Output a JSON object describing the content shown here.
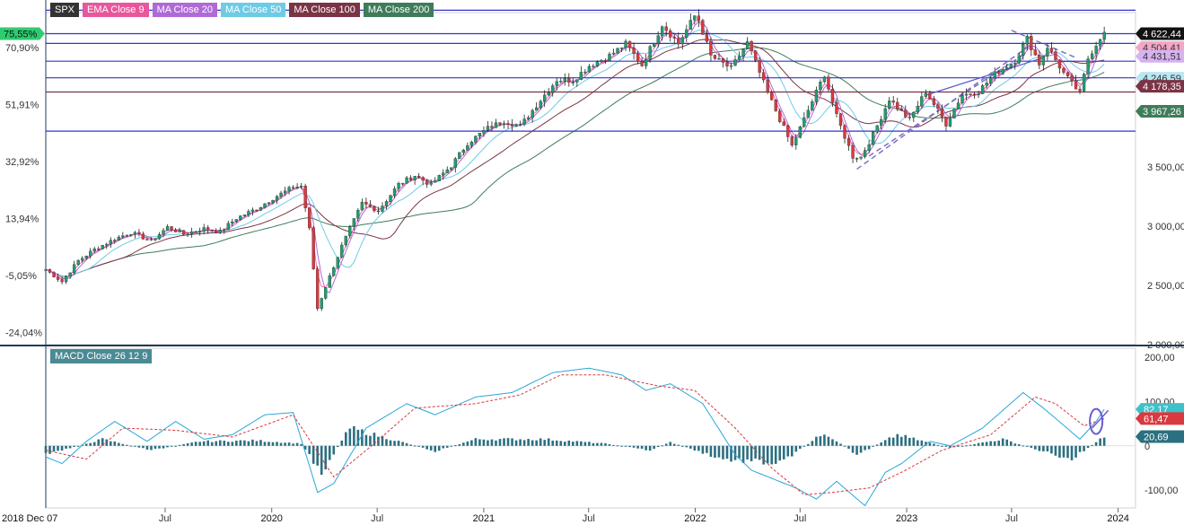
{
  "legend": [
    {
      "label": "SPX",
      "color": "#333333"
    },
    {
      "label": "EMA Close 9",
      "color": "#e8579b"
    },
    {
      "label": "MA Close 20",
      "color": "#b06ad8"
    },
    {
      "label": "MA Close 50",
      "color": "#6ecbe6"
    },
    {
      "label": "MA Close 100",
      "color": "#7a3445"
    },
    {
      "label": "MA Close 200",
      "color": "#3f7c5a"
    }
  ],
  "macd_label": "MACD Close 26 12 9",
  "chart_data": [
    {
      "type": "candlestick",
      "title": "SPX",
      "x_range": [
        "2018-12-07",
        "2024-01-31"
      ],
      "ylim": [
        2000,
        4800
      ],
      "right_ticks": [
        "2 000,00",
        "2 500,00",
        "3 000,00",
        "3 500,00"
      ],
      "right_tick_values": [
        2000,
        2500,
        3000,
        3500
      ],
      "left_ticks": [
        "75,55%",
        "70,90%",
        "51,91%",
        "32,92%",
        "13,94%",
        "-5,05%",
        "-24,04%"
      ],
      "left_tick_values": [
        4622.44,
        4504.4,
        4025,
        3545,
        3064,
        2584,
        2104
      ],
      "price_labels": [
        {
          "text": "4 622,44",
          "value": 4622.44,
          "bg": "#111111",
          "fg": "#ffffff"
        },
        {
          "text": "4 504,41",
          "value": 4504.41,
          "bg": "#f2a7c8",
          "fg": "#333333"
        },
        {
          "text": "4 431,51",
          "value": 4431.51,
          "bg": "#d6b3f0",
          "fg": "#333333"
        },
        {
          "text": "4 246,59",
          "value": 4246.59,
          "bg": "#b9e6f3",
          "fg": "#333333"
        },
        {
          "text": "4 178,35",
          "value": 4178.35,
          "bg": "#7a3445",
          "fg": "#ffffff"
        },
        {
          "text": "3 967,26",
          "value": 3967.26,
          "bg": "#3f7c5a",
          "fg": "#ffffff"
        }
      ],
      "x_ticks": [
        "2018 Dec 07",
        "Jul",
        "2020",
        "Jul",
        "2021",
        "Jul",
        "2022",
        "Jul",
        "2023",
        "Jul",
        "2024"
      ],
      "x_tick_dates": [
        "2018-12-07",
        "2019-07-01",
        "2020-01-01",
        "2020-07-01",
        "2021-01-01",
        "2021-07-01",
        "2022-01-01",
        "2022-07-01",
        "2023-01-01",
        "2023-07-01",
        "2024-01-01"
      ],
      "horizontal_levels": [
        {
          "value": 4820,
          "color": "#3333cc"
        },
        {
          "value": 4622,
          "color": "#3333cc"
        },
        {
          "value": 4540,
          "color": "#3333cc"
        },
        {
          "value": 4390,
          "color": "#3333cc"
        },
        {
          "value": 4250,
          "color": "#3333cc"
        },
        {
          "value": 4130,
          "color": "#7a3445"
        },
        {
          "value": 3800,
          "color": "#3333cc"
        }
      ],
      "closes": [
        {
          "t": "2018-12-07",
          "v": 2633
        },
        {
          "t": "2019-01-04",
          "v": 2531
        },
        {
          "t": "2019-02-01",
          "v": 2707
        },
        {
          "t": "2019-03-01",
          "v": 2803
        },
        {
          "t": "2019-04-05",
          "v": 2892
        },
        {
          "t": "2019-05-03",
          "v": 2946
        },
        {
          "t": "2019-06-07",
          "v": 2873
        },
        {
          "t": "2019-07-05",
          "v": 2990
        },
        {
          "t": "2019-08-02",
          "v": 2932
        },
        {
          "t": "2019-09-06",
          "v": 2978
        },
        {
          "t": "2019-10-04",
          "v": 2952
        },
        {
          "t": "2019-11-01",
          "v": 3066
        },
        {
          "t": "2019-12-06",
          "v": 3146
        },
        {
          "t": "2020-01-03",
          "v": 3235
        },
        {
          "t": "2020-02-07",
          "v": 3327
        },
        {
          "t": "2020-02-21",
          "v": 3338
        },
        {
          "t": "2020-03-06",
          "v": 2972
        },
        {
          "t": "2020-03-20",
          "v": 2305
        },
        {
          "t": "2020-04-03",
          "v": 2489
        },
        {
          "t": "2020-05-01",
          "v": 2831
        },
        {
          "t": "2020-06-05",
          "v": 3193
        },
        {
          "t": "2020-07-03",
          "v": 3130
        },
        {
          "t": "2020-08-07",
          "v": 3351
        },
        {
          "t": "2020-09-04",
          "v": 3427
        },
        {
          "t": "2020-10-02",
          "v": 3348
        },
        {
          "t": "2020-11-06",
          "v": 3509
        },
        {
          "t": "2020-12-04",
          "v": 3699
        },
        {
          "t": "2021-01-08",
          "v": 3825
        },
        {
          "t": "2021-02-05",
          "v": 3887
        },
        {
          "t": "2021-03-05",
          "v": 3842
        },
        {
          "t": "2021-04-02",
          "v": 4020
        },
        {
          "t": "2021-05-07",
          "v": 4233
        },
        {
          "t": "2021-06-04",
          "v": 4230
        },
        {
          "t": "2021-07-02",
          "v": 4352
        },
        {
          "t": "2021-08-06",
          "v": 4437
        },
        {
          "t": "2021-09-03",
          "v": 4535
        },
        {
          "t": "2021-10-01",
          "v": 4357
        },
        {
          "t": "2021-11-05",
          "v": 4698
        },
        {
          "t": "2021-12-03",
          "v": 4538
        },
        {
          "t": "2022-01-03",
          "v": 4796
        },
        {
          "t": "2022-01-28",
          "v": 4432
        },
        {
          "t": "2022-03-04",
          "v": 4329
        },
        {
          "t": "2022-04-01",
          "v": 4545
        },
        {
          "t": "2022-05-06",
          "v": 4123
        },
        {
          "t": "2022-06-17",
          "v": 3675
        },
        {
          "t": "2022-07-01",
          "v": 3825
        },
        {
          "t": "2022-08-12",
          "v": 4280
        },
        {
          "t": "2022-09-02",
          "v": 3924
        },
        {
          "t": "2022-09-30",
          "v": 3585
        },
        {
          "t": "2022-10-14",
          "v": 3583
        },
        {
          "t": "2022-11-04",
          "v": 3771
        },
        {
          "t": "2022-12-02",
          "v": 4071
        },
        {
          "t": "2023-01-06",
          "v": 3895
        },
        {
          "t": "2023-02-03",
          "v": 4136
        },
        {
          "t": "2023-03-10",
          "v": 3861
        },
        {
          "t": "2023-04-06",
          "v": 4105
        },
        {
          "t": "2023-05-05",
          "v": 4136
        },
        {
          "t": "2023-06-02",
          "v": 4282
        },
        {
          "t": "2023-07-07",
          "v": 4398
        },
        {
          "t": "2023-07-28",
          "v": 4582
        },
        {
          "t": "2023-08-18",
          "v": 4369
        },
        {
          "t": "2023-09-01",
          "v": 4515
        },
        {
          "t": "2023-09-29",
          "v": 4288
        },
        {
          "t": "2023-10-27",
          "v": 4117
        },
        {
          "t": "2023-11-10",
          "v": 4415
        },
        {
          "t": "2023-12-01",
          "v": 4594
        },
        {
          "t": "2023-12-08",
          "v": 4622
        }
      ]
    },
    {
      "type": "macd",
      "title": "MACD Close 26 12 9",
      "ylim": [
        -140,
        220
      ],
      "ticks": [
        "200,00",
        "100,00",
        "0",
        "-100,00"
      ],
      "tick_values": [
        200,
        100,
        0,
        -100
      ],
      "value_labels": [
        {
          "text": "82,17",
          "value": 82.17,
          "bg": "#3fc1c9",
          "fg": "#ffffff"
        },
        {
          "text": "61,47",
          "value": 61.47,
          "bg": "#d9393f",
          "fg": "#ffffff"
        },
        {
          "text": "20,69",
          "value": 20.69,
          "bg": "#2b6f80",
          "fg": "#ffffff"
        }
      ],
      "series": [
        {
          "name": "MACD",
          "color": "#2aa7d8",
          "points": [
            {
              "t": "2018-12-07",
              "v": -25
            },
            {
              "t": "2019-01-04",
              "v": -40
            },
            {
              "t": "2019-02-15",
              "v": 10
            },
            {
              "t": "2019-04-05",
              "v": 55
            },
            {
              "t": "2019-05-31",
              "v": 10
            },
            {
              "t": "2019-07-19",
              "v": 55
            },
            {
              "t": "2019-09-06",
              "v": 15
            },
            {
              "t": "2019-10-25",
              "v": 25
            },
            {
              "t": "2019-12-20",
              "v": 70
            },
            {
              "t": "2020-02-07",
              "v": 75
            },
            {
              "t": "2020-03-20",
              "v": -105
            },
            {
              "t": "2020-04-17",
              "v": -85
            },
            {
              "t": "2020-06-12",
              "v": 40
            },
            {
              "t": "2020-08-21",
              "v": 95
            },
            {
              "t": "2020-10-09",
              "v": 70
            },
            {
              "t": "2020-12-18",
              "v": 110
            },
            {
              "t": "2021-02-19",
              "v": 120
            },
            {
              "t": "2021-04-30",
              "v": 165
            },
            {
              "t": "2021-07-02",
              "v": 175
            },
            {
              "t": "2021-08-27",
              "v": 160
            },
            {
              "t": "2021-10-08",
              "v": 125
            },
            {
              "t": "2021-11-19",
              "v": 140
            },
            {
              "t": "2022-01-14",
              "v": 95
            },
            {
              "t": "2022-03-11",
              "v": -20
            },
            {
              "t": "2022-04-08",
              "v": -55
            },
            {
              "t": "2022-06-24",
              "v": -95
            },
            {
              "t": "2022-07-29",
              "v": -120
            },
            {
              "t": "2022-09-02",
              "v": -80
            },
            {
              "t": "2022-10-21",
              "v": -135
            },
            {
              "t": "2022-11-25",
              "v": -60
            },
            {
              "t": "2022-12-23",
              "v": -40
            },
            {
              "t": "2023-02-10",
              "v": 10
            },
            {
              "t": "2023-03-17",
              "v": 0
            },
            {
              "t": "2023-05-12",
              "v": 40
            },
            {
              "t": "2023-07-21",
              "v": 120
            },
            {
              "t": "2023-08-25",
              "v": 85
            },
            {
              "t": "2023-10-27",
              "v": 15
            },
            {
              "t": "2023-11-24",
              "v": 55
            },
            {
              "t": "2023-12-08",
              "v": 82
            }
          ]
        },
        {
          "name": "Signal",
          "color": "#d9393f",
          "dashed": true,
          "points": [
            {
              "t": "2018-12-07",
              "v": -10
            },
            {
              "t": "2019-02-15",
              "v": -30
            },
            {
              "t": "2019-04-19",
              "v": 40
            },
            {
              "t": "2019-07-19",
              "v": 35
            },
            {
              "t": "2019-10-25",
              "v": 20
            },
            {
              "t": "2020-02-07",
              "v": 70
            },
            {
              "t": "2020-04-17",
              "v": -70
            },
            {
              "t": "2020-06-26",
              "v": 5
            },
            {
              "t": "2020-09-04",
              "v": 85
            },
            {
              "t": "2020-12-18",
              "v": 95
            },
            {
              "t": "2021-03-05",
              "v": 115
            },
            {
              "t": "2021-05-14",
              "v": 160
            },
            {
              "t": "2021-07-30",
              "v": 160
            },
            {
              "t": "2021-10-29",
              "v": 135
            },
            {
              "t": "2021-12-31",
              "v": 125
            },
            {
              "t": "2022-03-11",
              "v": 40
            },
            {
              "t": "2022-05-13",
              "v": -50
            },
            {
              "t": "2022-07-08",
              "v": -110
            },
            {
              "t": "2022-08-26",
              "v": -105
            },
            {
              "t": "2022-10-28",
              "v": -95
            },
            {
              "t": "2022-12-30",
              "v": -55
            },
            {
              "t": "2023-03-03",
              "v": -10
            },
            {
              "t": "2023-05-26",
              "v": 25
            },
            {
              "t": "2023-08-11",
              "v": 110
            },
            {
              "t": "2023-09-15",
              "v": 95
            },
            {
              "t": "2023-11-03",
              "v": 45
            },
            {
              "t": "2023-12-08",
              "v": 61
            }
          ]
        }
      ],
      "histogram_profile": [
        {
          "t": "2018-12-07",
          "v": -20
        },
        {
          "t": "2019-03-15",
          "v": 15
        },
        {
          "t": "2019-06-07",
          "v": -10
        },
        {
          "t": "2019-08-30",
          "v": 10
        },
        {
          "t": "2019-12-06",
          "v": 12
        },
        {
          "t": "2020-02-21",
          "v": 5
        },
        {
          "t": "2020-03-27",
          "v": -60
        },
        {
          "t": "2020-05-15",
          "v": 40
        },
        {
          "t": "2020-08-14",
          "v": 8
        },
        {
          "t": "2020-10-09",
          "v": -12
        },
        {
          "t": "2020-12-18",
          "v": 15
        },
        {
          "t": "2021-04-16",
          "v": 15
        },
        {
          "t": "2021-07-30",
          "v": 5
        },
        {
          "t": "2021-10-15",
          "v": -10
        },
        {
          "t": "2021-11-19",
          "v": 8
        },
        {
          "t": "2022-02-18",
          "v": -30
        },
        {
          "t": "2022-05-27",
          "v": -40
        },
        {
          "t": "2022-08-12",
          "v": 30
        },
        {
          "t": "2022-10-07",
          "v": -20
        },
        {
          "t": "2022-12-16",
          "v": 25
        },
        {
          "t": "2023-03-17",
          "v": -5
        },
        {
          "t": "2023-06-16",
          "v": 15
        },
        {
          "t": "2023-08-04",
          "v": -5
        },
        {
          "t": "2023-10-13",
          "v": -30
        },
        {
          "t": "2023-12-08",
          "v": 20.69
        }
      ]
    }
  ]
}
